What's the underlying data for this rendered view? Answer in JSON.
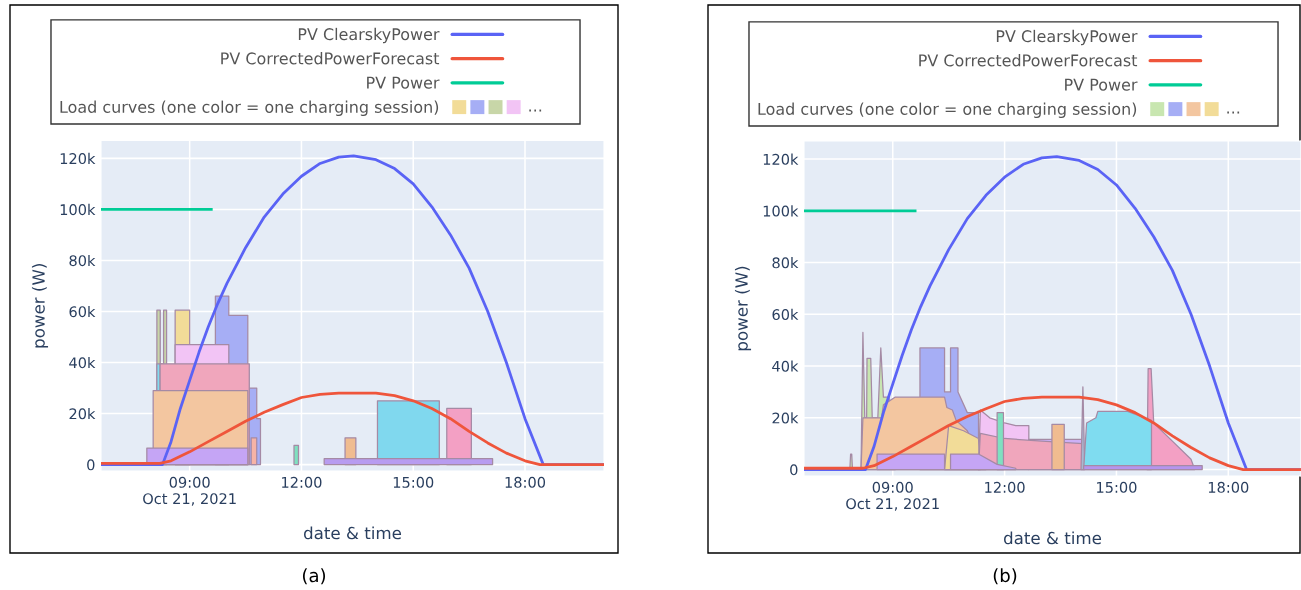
{
  "chart_data": [
    {
      "type": "line",
      "xlabel": "date & time",
      "ylabel": "power (W)",
      "xlim": [
        6.62,
        20.12
      ],
      "ylim": [
        -2500,
        127000
      ],
      "xticks": [
        {
          "value": 9,
          "label": "09:00\nOct 21, 2021"
        },
        {
          "value": 12,
          "label": "12:00"
        },
        {
          "value": 15,
          "label": "15:00"
        },
        {
          "value": 18,
          "label": "18:00"
        }
      ],
      "yticks": [
        0,
        {
          "value": 20000,
          "label": "20k"
        },
        {
          "value": 40000,
          "label": "40k"
        },
        {
          "value": 60000,
          "label": "60k"
        },
        {
          "value": 80000,
          "label": "80k"
        },
        {
          "value": 100000,
          "label": "100k"
        },
        {
          "value": 120000,
          "label": "120k"
        }
      ],
      "grid": true,
      "legend": "top",
      "annotations": [
        "...",
        "(a)"
      ],
      "series": [
        {
          "name": "PV ClearskyPower",
          "color": "#5a63f5",
          "x": [
            6.62,
            8.27,
            8.5,
            8.75,
            9.0,
            9.25,
            9.5,
            9.75,
            10.0,
            10.5,
            11.0,
            11.5,
            12.0,
            12.5,
            13.0,
            13.4,
            14.0,
            14.5,
            15.0,
            15.5,
            16.0,
            16.5,
            17.0,
            17.5,
            18.0,
            18.49,
            20.12
          ],
          "values": [
            0,
            0,
            9000,
            22000,
            33000,
            44000,
            54000,
            63000,
            71000,
            85000,
            97000,
            106000,
            113000,
            118000,
            120500,
            121000,
            119500,
            116000,
            110000,
            101000,
            90000,
            77000,
            60000,
            40000,
            18000,
            0,
            0
          ]
        },
        {
          "name": "PV CorrectedPowerForecast",
          "color": "#ef553b",
          "x": [
            6.62,
            8.2,
            8.5,
            9.0,
            9.5,
            10.0,
            10.5,
            11.0,
            11.5,
            12.0,
            12.5,
            13.0,
            14.0,
            14.5,
            15.0,
            15.5,
            16.0,
            16.5,
            17.0,
            17.5,
            18.0,
            18.4,
            20.12
          ],
          "values": [
            500,
            500,
            1500,
            5000,
            9000,
            13000,
            17000,
            20500,
            23500,
            26300,
            27500,
            28000,
            28000,
            27000,
            25000,
            22000,
            18000,
            13000,
            8500,
            4500,
            1500,
            0,
            0
          ]
        },
        {
          "name": "PV Power",
          "color": "#00cc96",
          "x": [
            6.62,
            9.58
          ],
          "values": [
            100000,
            100000
          ]
        },
        {
          "type": "area",
          "color": "#a6aef5",
          "x": [
            9.69,
            9.69,
            10.05,
            10.05,
            10.56,
            10.56,
            10.8,
            10.8,
            10.9,
            10.9
          ],
          "values": [
            0,
            66000,
            66000,
            58500,
            58500,
            30000,
            30000,
            18000,
            18000,
            0
          ]
        },
        {
          "name": "Load curves (one color = one charging session)",
          "type": "area",
          "color": "#f2dc98",
          "x": [
            8.61,
            8.61,
            9.0,
            9.0
          ],
          "values": [
            0,
            60500,
            60500,
            0
          ]
        },
        {
          "type": "area",
          "color": "#c8d6a8",
          "x": [
            8.12,
            8.12,
            8.21,
            8.21,
            8.3,
            8.3,
            8.38,
            8.38
          ],
          "values": [
            0,
            60500,
            60500,
            39500,
            39500,
            60500,
            60500,
            0
          ]
        },
        {
          "type": "area",
          "color": "#f2c4f5",
          "x": [
            8.61,
            8.61,
            10.05,
            10.05
          ],
          "values": [
            0,
            47000,
            47000,
            0
          ]
        },
        {
          "type": "area",
          "color": "#f0a6bc",
          "x": [
            8.2,
            8.2,
            10.6,
            10.6
          ],
          "values": [
            0,
            39500,
            39500,
            0
          ]
        },
        {
          "type": "area",
          "color": "#7fdcf0",
          "x": [
            8.12,
            8.12,
            8.2,
            8.2
          ],
          "values": [
            0,
            39500,
            39500,
            0
          ]
        },
        {
          "type": "area",
          "color": "#f3c6a0",
          "x": [
            8.02,
            8.02,
            10.56,
            10.56
          ],
          "values": [
            0,
            29000,
            29000,
            0
          ]
        },
        {
          "type": "area",
          "color": "#c5a5f5",
          "x": [
            7.85,
            7.85,
            10.56,
            10.56
          ],
          "values": [
            0,
            6500,
            6500,
            0
          ]
        },
        {
          "type": "area",
          "color": "#f6b3a6",
          "x": [
            10.65,
            10.65,
            10.8,
            10.8
          ],
          "values": [
            0,
            10500,
            10500,
            0
          ]
        },
        {
          "type": "area",
          "color": "#7fe0c0",
          "x": [
            11.8,
            11.8,
            11.92,
            11.92
          ],
          "values": [
            0,
            7500,
            7500,
            0
          ]
        },
        {
          "type": "area",
          "color": "#80d8ee",
          "x": [
            14.04,
            14.04,
            15.7,
            15.7
          ],
          "values": [
            0,
            25000,
            25000,
            0
          ]
        },
        {
          "type": "area",
          "color": "#f3a0c4",
          "x": [
            15.9,
            15.9,
            16.56,
            16.56
          ],
          "values": [
            0,
            22000,
            22000,
            0
          ]
        },
        {
          "type": "area",
          "color": "#f0bc90",
          "x": [
            13.17,
            13.17,
            13.46,
            13.46
          ],
          "values": [
            0,
            10500,
            10500,
            0
          ]
        },
        {
          "type": "area",
          "color": "#b89cf0",
          "x": [
            12.61,
            12.61,
            17.13,
            17.13
          ],
          "values": [
            0,
            2300,
            2300,
            0
          ]
        }
      ]
    },
    {
      "type": "line",
      "xlabel": "date & time",
      "ylabel": "power (W)",
      "xlim": [
        6.62,
        19.95
      ],
      "ylim": [
        -2500,
        127000
      ],
      "xticks": [
        {
          "value": 9,
          "label": "09:00\nOct 21, 2021"
        },
        {
          "value": 12,
          "label": "12:00"
        },
        {
          "value": 15,
          "label": "15:00"
        },
        {
          "value": 18,
          "label": "18:00"
        }
      ],
      "yticks": [
        0,
        {
          "value": 20000,
          "label": "20k"
        },
        {
          "value": 40000,
          "label": "40k"
        },
        {
          "value": 60000,
          "label": "60k"
        },
        {
          "value": 80000,
          "label": "80k"
        },
        {
          "value": 100000,
          "label": "100k"
        },
        {
          "value": 120000,
          "label": "120k"
        }
      ],
      "grid": true,
      "legend": "top",
      "annotations": [
        "...",
        "(b)"
      ],
      "series": [
        {
          "name": "PV ClearskyPower",
          "color": "#5a63f5",
          "x": [
            6.62,
            8.27,
            8.5,
            8.75,
            9.0,
            9.25,
            9.5,
            9.75,
            10.0,
            10.5,
            11.0,
            11.5,
            12.0,
            12.5,
            13.0,
            13.4,
            14.0,
            14.5,
            15.0,
            15.5,
            16.0,
            16.5,
            17.0,
            17.5,
            18.0,
            18.49,
            19.95
          ],
          "values": [
            0,
            0,
            9000,
            22000,
            33000,
            44000,
            54000,
            63000,
            71000,
            85000,
            97000,
            106000,
            113000,
            118000,
            120500,
            121000,
            119500,
            116000,
            110000,
            101000,
            90000,
            77000,
            60000,
            40000,
            18000,
            0,
            0
          ]
        },
        {
          "name": "PV CorrectedPowerForecast",
          "color": "#ef553b",
          "x": [
            6.62,
            8.2,
            8.5,
            9.0,
            9.5,
            10.0,
            10.5,
            11.0,
            11.5,
            12.0,
            12.5,
            13.0,
            14.0,
            14.5,
            15.0,
            15.5,
            16.0,
            16.5,
            17.0,
            17.5,
            18.0,
            18.4,
            19.95
          ],
          "values": [
            500,
            500,
            1500,
            5000,
            9000,
            13000,
            17000,
            20500,
            23500,
            26300,
            27500,
            28000,
            28000,
            27000,
            25000,
            22000,
            18000,
            13000,
            8500,
            4500,
            1500,
            0,
            0
          ]
        },
        {
          "name": "PV Power",
          "color": "#00cc96",
          "x": [
            6.62,
            9.6
          ],
          "values": [
            100000,
            100000
          ]
        },
        {
          "type": "area",
          "color": "#a6aef5",
          "x": [
            9.73,
            9.73,
            10.39,
            10.39,
            10.55,
            10.55,
            10.75,
            10.75,
            11.0,
            11.3,
            11.3
          ],
          "values": [
            0,
            47000,
            47000,
            30000,
            30000,
            47000,
            47000,
            30000,
            22000,
            22000,
            0
          ]
        },
        {
          "name": "Load curves (one color = one charging session)",
          "type": "area",
          "color": "#c8e6b0",
          "x": [
            7.85,
            7.87,
            7.9,
            7.92,
            8.15,
            8.2,
            8.25,
            8.3,
            8.31,
            8.41,
            8.45,
            8.6,
            8.68,
            8.75,
            8.9,
            9.07
          ],
          "values": [
            0,
            6000,
            6000,
            0,
            0,
            53000,
            20000,
            20000,
            43000,
            43000,
            20000,
            20000,
            47000,
            28000,
            28000,
            0
          ]
        },
        {
          "type": "area",
          "color": "#f3c6a0",
          "x": [
            8.15,
            8.2,
            8.7,
            8.75,
            9.07,
            10.39,
            10.45,
            10.6,
            10.7,
            11.0,
            11.3,
            11.5
          ],
          "values": [
            0,
            20000,
            20000,
            25000,
            28000,
            28000,
            24000,
            23000,
            19000,
            15000,
            5000,
            0
          ]
        },
        {
          "type": "area",
          "color": "#f2dc98",
          "x": [
            10.39,
            10.5,
            10.9,
            11.3,
            11.35
          ],
          "values": [
            0,
            17000,
            15000,
            12000,
            0
          ]
        },
        {
          "type": "area",
          "color": "#f2c4f5",
          "x": [
            11.3,
            11.35,
            11.6,
            12.0,
            12.3,
            12.65,
            12.65
          ],
          "values": [
            0,
            23000,
            20000,
            18000,
            17000,
            17000,
            0
          ]
        },
        {
          "type": "area",
          "color": "#cdb0f7",
          "x": [
            12.65,
            12.65,
            14.1,
            14.1
          ],
          "values": [
            0,
            11700,
            11700,
            0
          ]
        },
        {
          "type": "area",
          "color": "#f0a6bc",
          "x": [
            11.3,
            11.35,
            12.0,
            13.0,
            14.1,
            14.12
          ],
          "values": [
            0,
            14000,
            12000,
            11000,
            10000,
            0
          ]
        },
        {
          "type": "area",
          "color": "#7fe0c0",
          "x": [
            11.8,
            11.8,
            11.97,
            11.97
          ],
          "values": [
            0,
            22000,
            22000,
            0
          ]
        },
        {
          "type": "area",
          "color": "#f0bc90",
          "x": [
            13.27,
            13.27,
            13.6,
            13.6
          ],
          "values": [
            0,
            17500,
            17500,
            0
          ]
        },
        {
          "type": "area",
          "color": "#a8b8d0",
          "x": [
            14.05,
            14.1,
            14.15
          ],
          "values": [
            0,
            32000,
            0
          ]
        },
        {
          "type": "area",
          "color": "#f3a0c4",
          "x": [
            15.82,
            15.85,
            15.93,
            16.0,
            16.5,
            17.0,
            17.1
          ],
          "values": [
            0,
            39000,
            39000,
            18000,
            11000,
            4000,
            0
          ]
        },
        {
          "type": "area",
          "color": "#7fdcf0",
          "x": [
            14.12,
            14.2,
            14.45,
            14.5,
            15.3,
            15.94,
            15.94
          ],
          "values": [
            0,
            18000,
            20000,
            22500,
            22500,
            19000,
            0
          ]
        },
        {
          "type": "area",
          "color": "#c5a5f5",
          "x": [
            8.58,
            8.58,
            10.39,
            10.39,
            10.55,
            10.55,
            11.3,
            11.8,
            12.3,
            12.3
          ],
          "values": [
            0,
            6000,
            6000,
            0,
            0,
            6000,
            6000,
            2000,
            500,
            0
          ]
        },
        {
          "type": "area",
          "color": "#b594ee",
          "x": [
            14.12,
            14.12,
            17.3,
            17.3
          ],
          "values": [
            0,
            1500,
            1500,
            0
          ]
        }
      ]
    }
  ]
}
